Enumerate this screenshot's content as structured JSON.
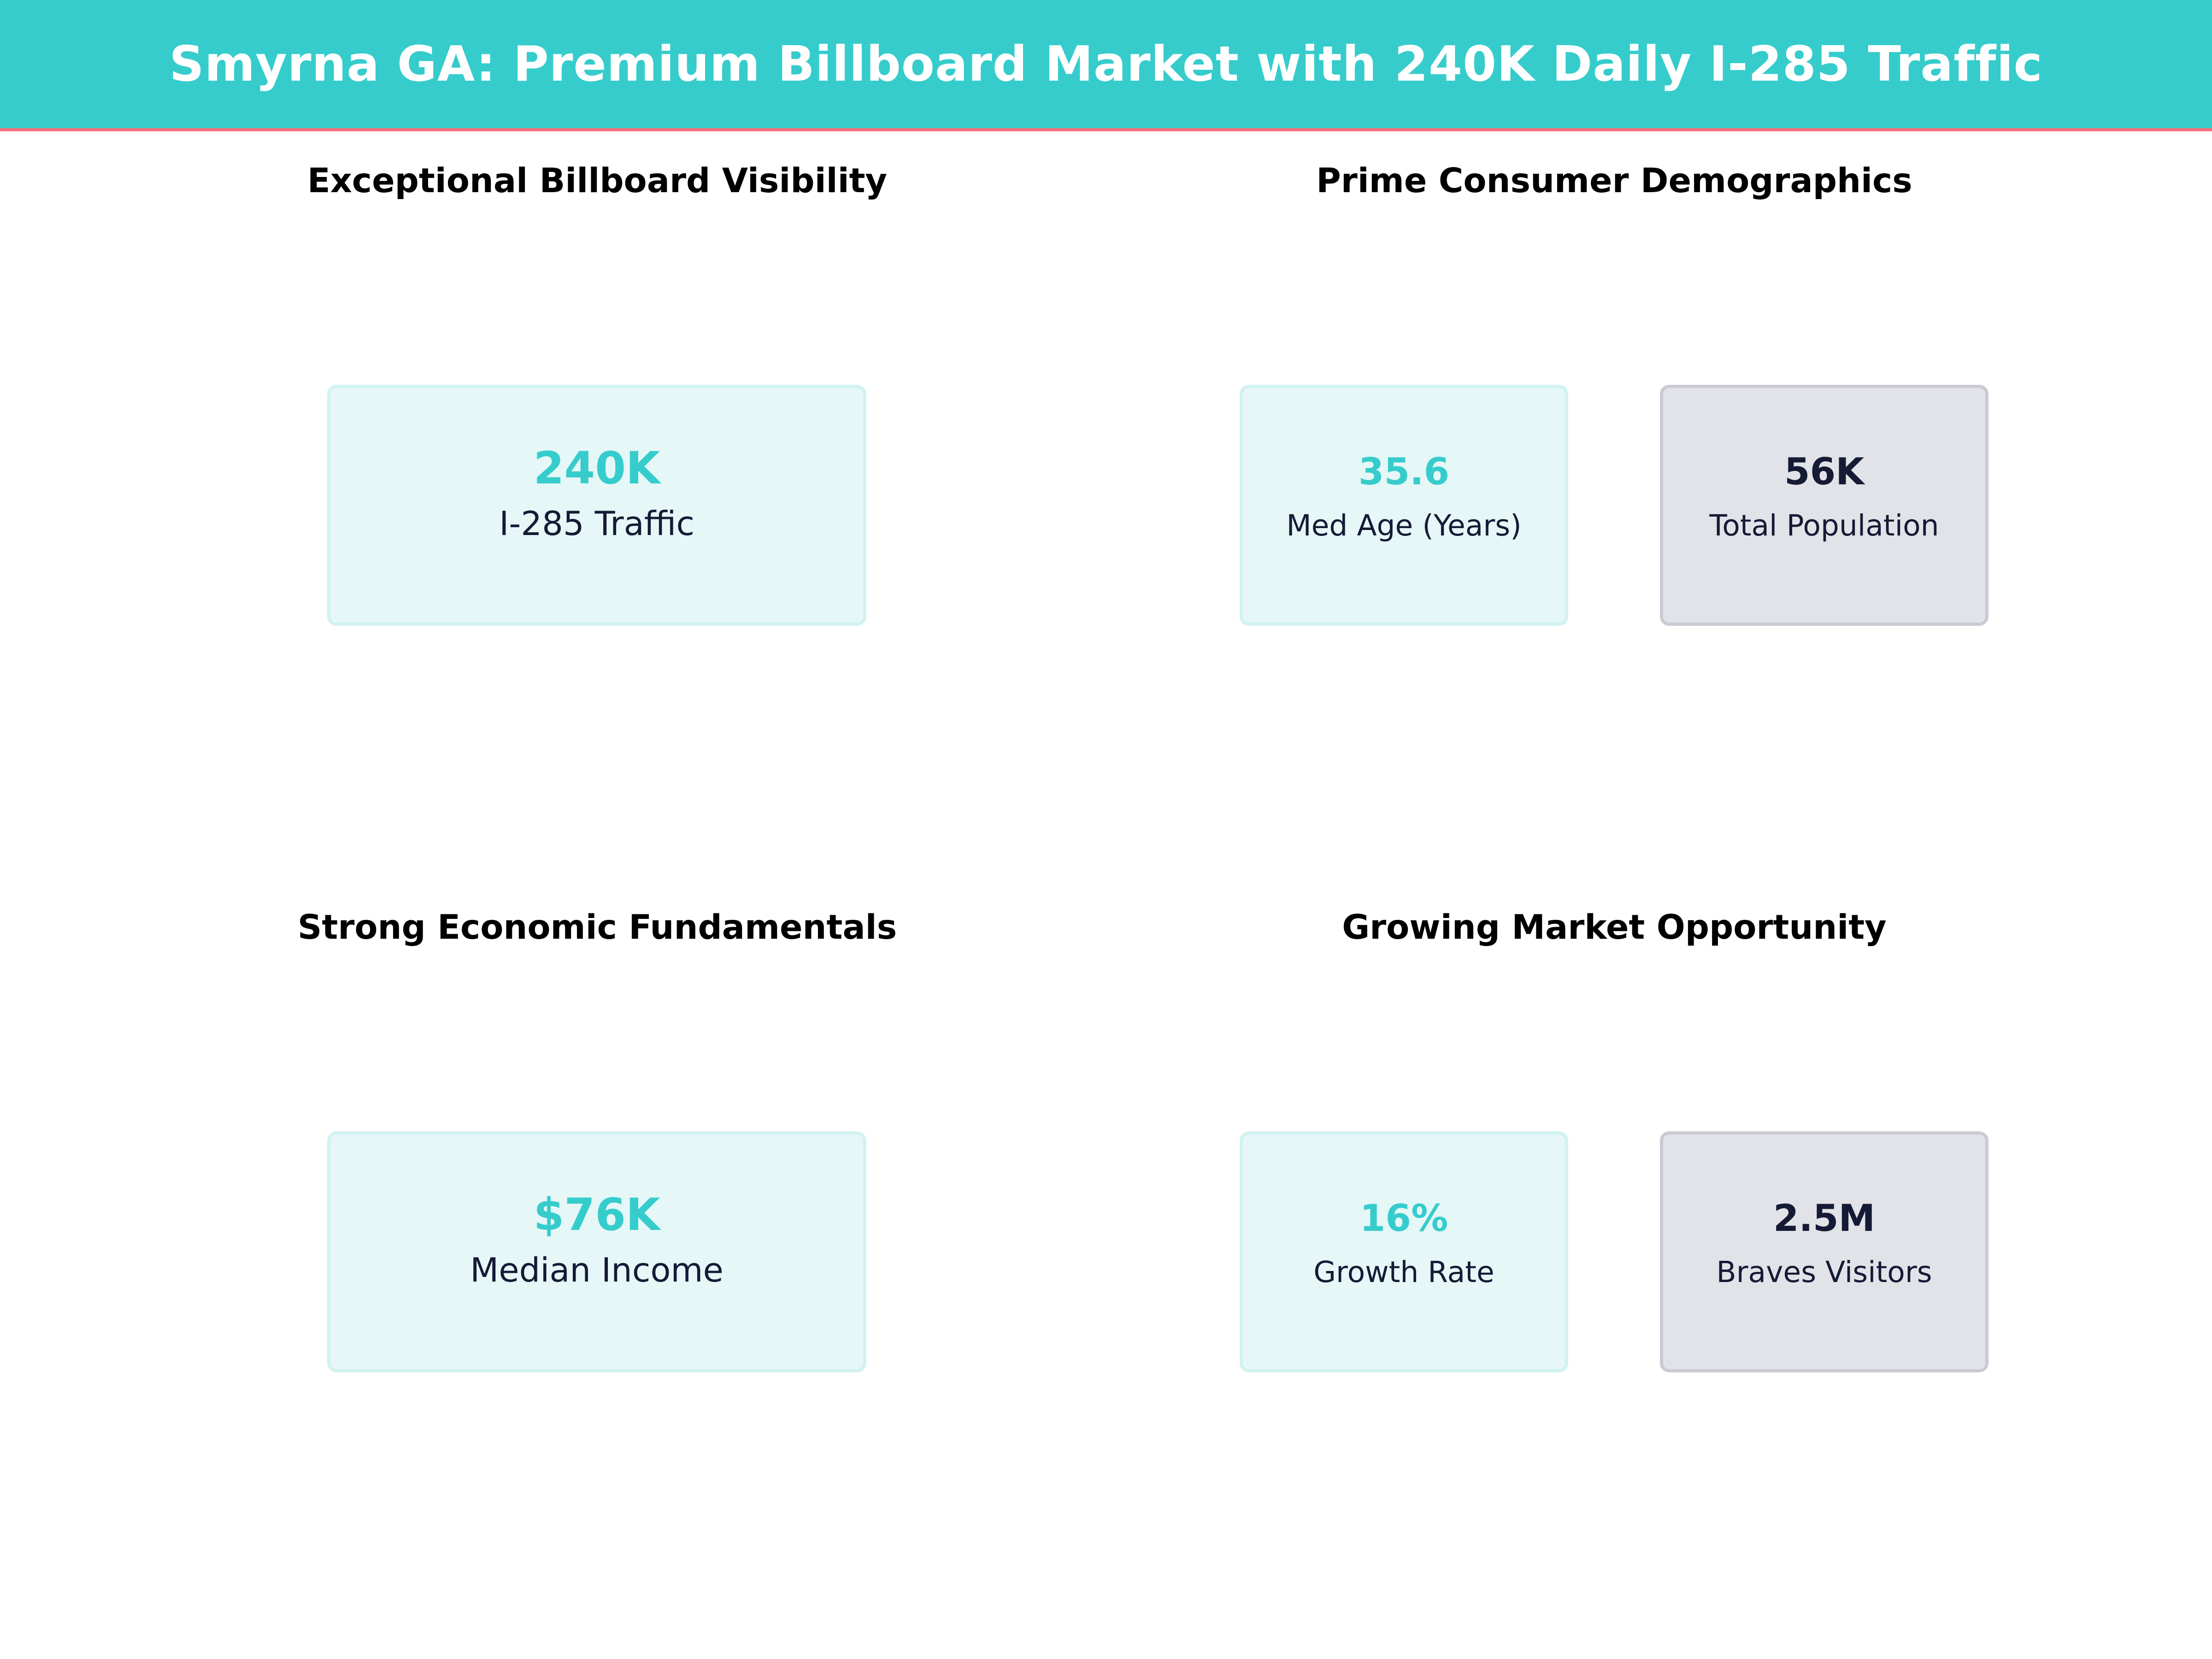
{
  "header": {
    "title": "Smyrna GA: Premium Billboard Market with 240K Daily I-285 Traffic"
  },
  "colors": {
    "accent": "#36CCCC",
    "banner_underline": "#F07080",
    "navy": "#151A35",
    "teal_card": "#E5F7F7",
    "gray_card": "#E2E3E8"
  },
  "sections": {
    "visibility": {
      "title": "Exceptional Billboard Visibility",
      "metrics": [
        {
          "value": "240K",
          "label": "I-285 Traffic"
        }
      ]
    },
    "demographics": {
      "title": "Prime Consumer Demographics",
      "metrics": [
        {
          "value": "35.6",
          "label": "Med Age (Years)"
        },
        {
          "value": "56K",
          "label": "Total Population"
        }
      ]
    },
    "economics": {
      "title": "Strong Economic Fundamentals",
      "metrics": [
        {
          "value": "$76K",
          "label": "Median Income"
        }
      ]
    },
    "opportunity": {
      "title": "Growing Market Opportunity",
      "metrics": [
        {
          "value": "16%",
          "label": "Growth Rate"
        },
        {
          "value": "2.5M",
          "label": "Braves Visitors"
        }
      ]
    }
  }
}
